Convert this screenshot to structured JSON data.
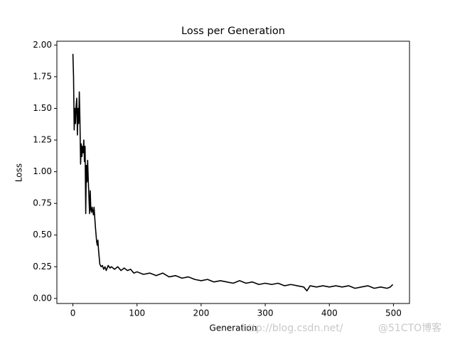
{
  "chart_data": {
    "type": "line",
    "title": "Loss per Generation",
    "xlabel": "Generation",
    "ylabel": "Loss",
    "x": [
      0,
      1,
      2,
      3,
      4,
      5,
      6,
      7,
      8,
      9,
      10,
      11,
      12,
      13,
      14,
      15,
      16,
      17,
      18,
      19,
      20,
      21,
      22,
      23,
      24,
      25,
      26,
      27,
      28,
      29,
      30,
      32,
      33,
      35,
      37,
      38,
      39,
      40,
      42,
      44,
      46,
      48,
      50,
      52,
      55,
      58,
      60,
      65,
      70,
      75,
      80,
      85,
      90,
      95,
      100,
      110,
      120,
      130,
      140,
      150,
      160,
      170,
      180,
      190,
      200,
      210,
      220,
      230,
      240,
      250,
      260,
      270,
      280,
      290,
      300,
      310,
      320,
      330,
      340,
      350,
      360,
      365,
      370,
      380,
      390,
      400,
      410,
      420,
      430,
      440,
      450,
      460,
      470,
      480,
      490,
      495,
      499
    ],
    "series": [
      {
        "name": "Loss",
        "color": "#000000",
        "values": [
          1.93,
          1.75,
          1.33,
          1.5,
          1.38,
          1.52,
          1.58,
          1.29,
          1.5,
          1.38,
          1.63,
          1.4,
          1.06,
          1.22,
          1.12,
          1.2,
          1.15,
          1.25,
          1.08,
          1.2,
          0.67,
          1.05,
          0.92,
          1.09,
          0.93,
          0.8,
          0.67,
          0.85,
          0.7,
          0.68,
          0.72,
          0.66,
          0.72,
          0.57,
          0.45,
          0.42,
          0.46,
          0.38,
          0.27,
          0.25,
          0.26,
          0.23,
          0.25,
          0.22,
          0.26,
          0.24,
          0.25,
          0.23,
          0.25,
          0.22,
          0.24,
          0.22,
          0.23,
          0.2,
          0.21,
          0.19,
          0.2,
          0.18,
          0.2,
          0.17,
          0.18,
          0.16,
          0.17,
          0.15,
          0.14,
          0.15,
          0.13,
          0.14,
          0.13,
          0.12,
          0.14,
          0.12,
          0.13,
          0.11,
          0.12,
          0.11,
          0.12,
          0.1,
          0.11,
          0.1,
          0.09,
          0.06,
          0.1,
          0.09,
          0.1,
          0.09,
          0.1,
          0.09,
          0.1,
          0.08,
          0.09,
          0.1,
          0.08,
          0.09,
          0.08,
          0.09,
          0.11
        ]
      }
    ],
    "xlim": [
      -25,
      525
    ],
    "ylim": [
      -0.04,
      2.03
    ],
    "xticks": [
      0,
      100,
      200,
      300,
      400,
      500
    ],
    "yticks": [
      {
        "value": 0,
        "label": "0.00"
      },
      {
        "value": 0.25,
        "label": "0.25"
      },
      {
        "value": 0.5,
        "label": "0.50"
      },
      {
        "value": 0.75,
        "label": "0.75"
      },
      {
        "value": 1,
        "label": "1.00"
      },
      {
        "value": 1.25,
        "label": "1.25"
      },
      {
        "value": 1.5,
        "label": "1.50"
      },
      {
        "value": 1.75,
        "label": "1.75"
      },
      {
        "value": 2,
        "label": "2.00"
      }
    ],
    "grid": false,
    "watermarks": [
      "http://blog.csdn.net/",
      "@51CTO博客"
    ]
  }
}
